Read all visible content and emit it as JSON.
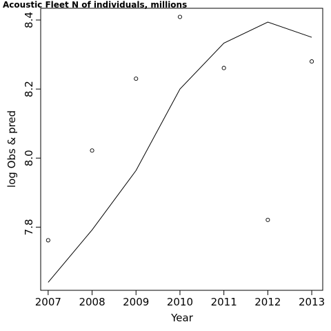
{
  "chart_data": {
    "type": "scatter",
    "title": "Acoustic Fleet   N of individuals, millions",
    "xlabel": "Year",
    "ylabel": "log Obs & pred",
    "xlim": [
      2006.83,
      2013.25
    ],
    "ylim": [
      7.617,
      8.434
    ],
    "x_ticks": [
      2007,
      2008,
      2009,
      2010,
      2011,
      2012,
      2013
    ],
    "y_ticks": [
      7.8,
      8.0,
      8.2,
      8.4
    ],
    "grid": false,
    "legend": "none",
    "series": [
      {
        "kind": "points",
        "marker": "open-circle",
        "x": [
          2007,
          2008,
          2009,
          2010,
          2011,
          2012,
          2013
        ],
        "y": [
          7.762,
          8.022,
          8.23,
          8.409,
          8.261,
          7.821,
          8.28
        ]
      },
      {
        "kind": "line",
        "x": [
          2007,
          2008,
          2009,
          2010,
          2011,
          2012,
          2013
        ],
        "y": [
          7.64,
          7.792,
          7.964,
          8.2,
          8.333,
          8.394,
          8.35
        ]
      }
    ]
  }
}
